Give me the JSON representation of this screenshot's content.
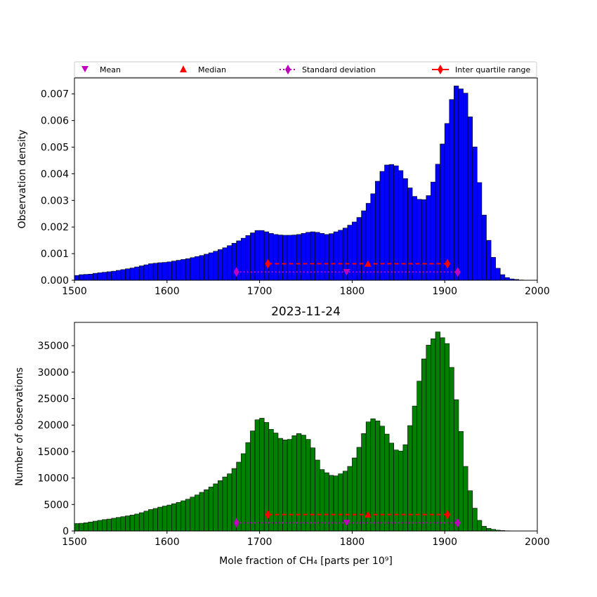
{
  "legend": {
    "items": [
      {
        "label": "Mean",
        "marker": "triangle-down",
        "color": "#bf00bf",
        "line": "none"
      },
      {
        "label": "Median",
        "marker": "triangle-up",
        "color": "#ff0000",
        "line": "none"
      },
      {
        "label": "Standard deviation",
        "marker": "diamond",
        "color": "#bf00bf",
        "line": "dotted"
      },
      {
        "label": "Inter quartile range",
        "marker": "diamond",
        "color": "#ff0000",
        "line": "solid"
      }
    ]
  },
  "stats": {
    "mean": 1794,
    "median": 1817,
    "std_range": [
      1675,
      1914
    ],
    "iqr_range": [
      1709,
      1903
    ]
  },
  "chart_data": [
    {
      "type": "bar",
      "title": "",
      "xlabel": "",
      "ylabel": "Observation density",
      "xlim": [
        1500,
        2000
      ],
      "ylim": [
        0,
        0.0076
      ],
      "xticks": [
        1500,
        1600,
        1700,
        1800,
        1900,
        2000
      ],
      "yticks": [
        "0.000",
        "0.001",
        "0.002",
        "0.003",
        "0.004",
        "0.005",
        "0.006",
        "0.007"
      ],
      "ytick_values": [
        0,
        0.001,
        0.002,
        0.003,
        0.004,
        0.005,
        0.006,
        0.007
      ],
      "bin_start": 1500,
      "bin_width": 5,
      "bar_color": "#0000ff",
      "values": [
        0.00018,
        0.00021,
        0.00022,
        0.00023,
        0.00026,
        0.00028,
        0.0003,
        0.00032,
        0.00034,
        0.00037,
        0.0004,
        0.00043,
        0.00046,
        0.0005,
        0.00054,
        0.00058,
        0.00062,
        0.00064,
        0.00066,
        0.00067,
        0.00069,
        0.00072,
        0.00075,
        0.00078,
        0.00081,
        0.00085,
        0.00089,
        0.00093,
        0.00098,
        0.00103,
        0.00109,
        0.00115,
        0.00122,
        0.0013,
        0.00139,
        0.00148,
        0.00158,
        0.00168,
        0.00178,
        0.00187,
        0.00187,
        0.00182,
        0.00176,
        0.00172,
        0.0017,
        0.00169,
        0.00169,
        0.0017,
        0.00172,
        0.00176,
        0.0018,
        0.00182,
        0.0018,
        0.00176,
        0.00172,
        0.00175,
        0.00182,
        0.00188,
        0.00196,
        0.00207,
        0.00219,
        0.00236,
        0.00261,
        0.00289,
        0.00325,
        0.00372,
        0.00409,
        0.00433,
        0.00435,
        0.0043,
        0.00412,
        0.00382,
        0.00347,
        0.00315,
        0.00304,
        0.00303,
        0.00318,
        0.00369,
        0.00436,
        0.00512,
        0.00589,
        0.00679,
        0.0073,
        0.00719,
        0.00703,
        0.00614,
        0.00501,
        0.00367,
        0.00245,
        0.0015,
        0.00086,
        0.00045,
        0.00021,
        0.0001,
        5e-05,
        3e-05,
        1e-05,
        5e-06,
        2e-06,
        1e-06
      ],
      "annotations": {
        "mean_y": 0.00031,
        "median_y": 0.00062,
        "std_y": 0.00031,
        "iqr_y": 0.00062
      }
    },
    {
      "type": "bar",
      "title": "2023-11-24",
      "xlabel": "Mole fraction of CH₄ [parts per 10⁹]",
      "ylabel": "Number of observations",
      "xlim": [
        1500,
        2000
      ],
      "ylim": [
        0,
        39400
      ],
      "xticks": [
        1500,
        1600,
        1700,
        1800,
        1900,
        2000
      ],
      "yticks": [
        "0",
        "5000",
        "10000",
        "15000",
        "20000",
        "25000",
        "30000",
        "35000"
      ],
      "ytick_values": [
        0,
        5000,
        10000,
        15000,
        20000,
        25000,
        30000,
        35000
      ],
      "bin_start": 1500,
      "bin_width": 5,
      "bar_color": "#008000",
      "values": [
        1400,
        1450,
        1550,
        1700,
        1850,
        2000,
        2150,
        2250,
        2400,
        2550,
        2700,
        2850,
        3000,
        3200,
        3450,
        3750,
        4050,
        4250,
        4500,
        4700,
        4900,
        5150,
        5400,
        5700,
        6000,
        6400,
        6800,
        7300,
        7800,
        8300,
        8900,
        9500,
        10200,
        10800,
        11800,
        13000,
        14600,
        16700,
        18900,
        21000,
        21300,
        20500,
        19200,
        18500,
        17500,
        17200,
        17300,
        18000,
        18400,
        18100,
        17300,
        15700,
        13400,
        11600,
        11000,
        10500,
        10400,
        10800,
        11300,
        12200,
        13800,
        15800,
        18400,
        20600,
        21200,
        20800,
        19800,
        18300,
        16600,
        15300,
        15100,
        16300,
        19900,
        23600,
        28300,
        32500,
        35100,
        36300,
        37600,
        36500,
        35400,
        30900,
        24800,
        18800,
        12200,
        7600,
        4300,
        2000,
        900,
        500,
        300,
        150,
        80,
        40,
        20,
        10,
        5,
        2,
        1,
        0
      ],
      "annotations": {
        "mean_y": 1550,
        "median_y": 3100,
        "std_y": 1550,
        "iqr_y": 3100
      }
    }
  ]
}
